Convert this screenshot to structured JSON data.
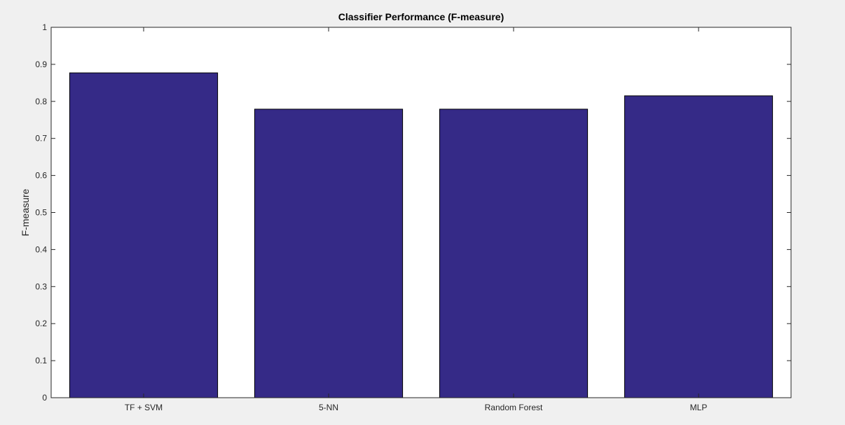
{
  "chart_data": {
    "type": "bar",
    "title": "Classifier Performance (F-measure)",
    "xlabel": "",
    "ylabel": "F-measure",
    "categories": [
      "TF + SVM",
      "5-NN",
      "Random Forest",
      "MLP"
    ],
    "values": [
      0.877,
      0.779,
      0.779,
      0.815
    ],
    "ylim": [
      0,
      1
    ],
    "yticks": [
      0,
      0.1,
      0.2,
      0.3,
      0.4,
      0.5,
      0.6,
      0.7,
      0.8,
      0.9,
      1
    ],
    "ytick_labels": [
      "0",
      "0.1",
      "0.2",
      "0.3",
      "0.4",
      "0.5",
      "0.6",
      "0.7",
      "0.8",
      "0.9",
      "1"
    ],
    "grid": false,
    "legend": "none",
    "colors": {
      "bar": "#352a87",
      "bar_edge": "#000000",
      "axes_bg": "#ffffff",
      "figure_bg": "#f0f0f0",
      "axis": "#262626"
    }
  }
}
